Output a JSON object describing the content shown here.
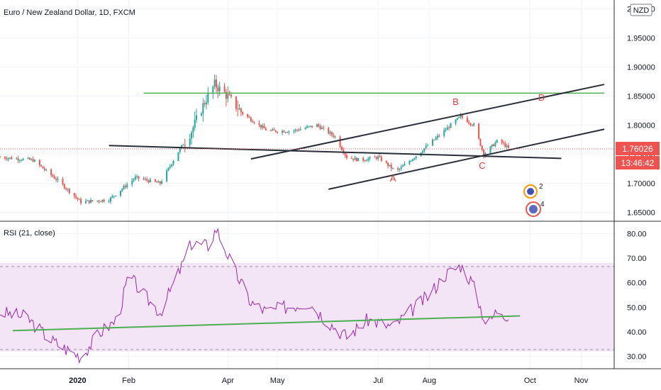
{
  "header": {
    "symbol_title": "Euro / New Zealand Dollar, 1D, FXCM",
    "currency_badge": "NZD"
  },
  "price_panel": {
    "last_price_label": "1.76026",
    "countdown_label": "13:46:42",
    "wave_labels": [
      "A",
      "B",
      "C",
      "D"
    ],
    "event_badges": [
      "2",
      "4"
    ]
  },
  "rsi_panel": {
    "title": "RSI (21, close)"
  },
  "colors": {
    "up": "#26a69a",
    "down": "#ef5350",
    "rsi_line": "#9c27b0",
    "rsi_band": "#f3e5f5",
    "support_line": "#4caf50",
    "trend_line": "#2a2e39",
    "price_tag": "#ef5350"
  },
  "chart_data": [
    {
      "type": "candlestick",
      "title": "Euro / New Zealand Dollar, 1D, FXCM",
      "x_tick_labels": [
        "2020",
        "Feb",
        "Apr",
        "May",
        "Jul",
        "Aug",
        "Oct",
        "Nov"
      ],
      "y_tick_labels": [
        "2.00000",
        "1.95000",
        "1.90000",
        "1.85000",
        "1.80000",
        "1.75000",
        "1.70000",
        "1.65000"
      ],
      "ylim": [
        1.635,
        2.015
      ],
      "last_price": 1.76026,
      "approx_close_path": [
        {
          "date": "2019-11-15",
          "close": 1.745
        },
        {
          "date": "2019-12-05",
          "close": 1.74
        },
        {
          "date": "2019-12-20",
          "close": 1.705
        },
        {
          "date": "2020-01-03",
          "close": 1.668
        },
        {
          "date": "2020-01-20",
          "close": 1.672
        },
        {
          "date": "2020-02-05",
          "close": 1.71
        },
        {
          "date": "2020-02-20",
          "close": 1.7
        },
        {
          "date": "2020-03-01",
          "close": 1.75
        },
        {
          "date": "2020-03-10",
          "close": 1.79
        },
        {
          "date": "2020-03-18",
          "close": 1.84
        },
        {
          "date": "2020-03-24",
          "close": 1.87
        },
        {
          "date": "2020-03-30",
          "close": 1.855
        },
        {
          "date": "2020-04-10",
          "close": 1.82
        },
        {
          "date": "2020-04-25",
          "close": 1.79
        },
        {
          "date": "2020-05-10",
          "close": 1.79
        },
        {
          "date": "2020-05-25",
          "close": 1.8
        },
        {
          "date": "2020-06-05",
          "close": 1.78
        },
        {
          "date": "2020-06-12",
          "close": 1.745
        },
        {
          "date": "2020-06-20",
          "close": 1.74
        },
        {
          "date": "2020-07-01",
          "close": 1.745
        },
        {
          "date": "2020-07-12",
          "close": 1.72
        },
        {
          "date": "2020-07-25",
          "close": 1.75
        },
        {
          "date": "2020-08-10",
          "close": 1.79
        },
        {
          "date": "2020-08-20",
          "close": 1.815
        },
        {
          "date": "2020-08-28",
          "close": 1.8
        },
        {
          "date": "2020-09-03",
          "close": 1.75
        },
        {
          "date": "2020-09-12",
          "close": 1.775
        },
        {
          "date": "2020-09-18",
          "close": 1.76
        }
      ],
      "lines": [
        {
          "kind": "horizontal",
          "color": "#4caf50",
          "from": "2020-02-10",
          "to": "2020-11-15",
          "price": 1.855
        },
        {
          "kind": "trend",
          "color": "#2a2e39",
          "from": {
            "date": "2020-01-20",
            "price": 1.765
          },
          "to": {
            "date": "2020-10-20",
            "price": 1.743
          }
        },
        {
          "kind": "trend",
          "color": "#2a2e39",
          "from": {
            "date": "2020-04-15",
            "price": 1.742
          },
          "to": {
            "date": "2020-11-15",
            "price": 1.87
          }
        },
        {
          "kind": "trend",
          "color": "#2a2e39",
          "from": {
            "date": "2020-06-01",
            "price": 1.69
          },
          "to": {
            "date": "2020-11-15",
            "price": 1.793
          }
        }
      ],
      "annotations": [
        {
          "text": "A",
          "date": "2020-07-10",
          "price": 1.703
        },
        {
          "text": "B",
          "date": "2020-08-17",
          "price": 1.835
        },
        {
          "text": "C",
          "date": "2020-09-02",
          "price": 1.725
        },
        {
          "text": "D",
          "date": "2020-10-08",
          "price": 1.842
        }
      ]
    },
    {
      "type": "line",
      "title": "RSI (21, close)",
      "y_tick_labels": [
        "80.00",
        "70.00",
        "60.00",
        "50.00",
        "40.00",
        "30.00"
      ],
      "ylim": [
        25,
        85
      ],
      "band": [
        32,
        68
      ],
      "approx_path": [
        {
          "date": "2019-11-15",
          "value": 48
        },
        {
          "date": "2019-12-01",
          "value": 46
        },
        {
          "date": "2019-12-15",
          "value": 37
        },
        {
          "date": "2019-12-25",
          "value": 33
        },
        {
          "date": "2020-01-03",
          "value": 30
        },
        {
          "date": "2020-01-15",
          "value": 40
        },
        {
          "date": "2020-01-25",
          "value": 45
        },
        {
          "date": "2020-02-01",
          "value": 63
        },
        {
          "date": "2020-02-10",
          "value": 55
        },
        {
          "date": "2020-02-20",
          "value": 48
        },
        {
          "date": "2020-03-01",
          "value": 62
        },
        {
          "date": "2020-03-10",
          "value": 76
        },
        {
          "date": "2020-03-20",
          "value": 75
        },
        {
          "date": "2020-03-25",
          "value": 82
        },
        {
          "date": "2020-04-05",
          "value": 65
        },
        {
          "date": "2020-04-15",
          "value": 52
        },
        {
          "date": "2020-04-25",
          "value": 48
        },
        {
          "date": "2020-05-05",
          "value": 50
        },
        {
          "date": "2020-05-20",
          "value": 52
        },
        {
          "date": "2020-06-01",
          "value": 44
        },
        {
          "date": "2020-06-12",
          "value": 38
        },
        {
          "date": "2020-06-25",
          "value": 45
        },
        {
          "date": "2020-07-10",
          "value": 42
        },
        {
          "date": "2020-07-20",
          "value": 48
        },
        {
          "date": "2020-08-01",
          "value": 55
        },
        {
          "date": "2020-08-10",
          "value": 63
        },
        {
          "date": "2020-08-20",
          "value": 67
        },
        {
          "date": "2020-08-27",
          "value": 60
        },
        {
          "date": "2020-09-05",
          "value": 42
        },
        {
          "date": "2020-09-12",
          "value": 50
        },
        {
          "date": "2020-09-18",
          "value": 46
        }
      ],
      "support_line": {
        "from": {
          "date": "2019-11-15",
          "value": 40.5
        },
        "to": {
          "date": "2020-09-25",
          "value": 46.5
        }
      }
    }
  ]
}
